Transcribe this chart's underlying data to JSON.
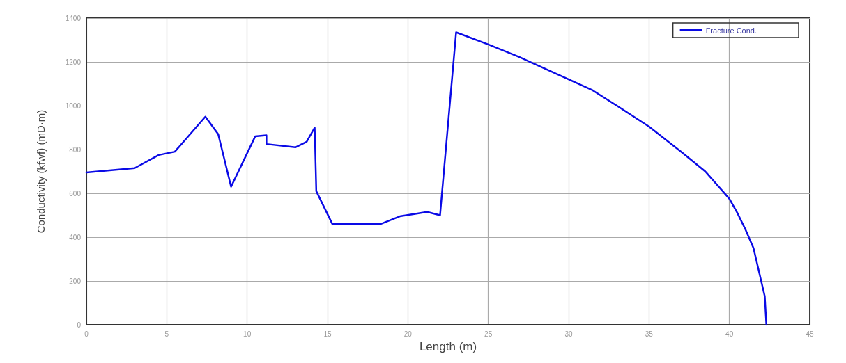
{
  "chart_data": {
    "type": "line",
    "xlabel": "Length (m)",
    "ylabel": "Conductivity (kfwf) (mD·m)",
    "xlim": [
      0,
      45
    ],
    "xticks": [
      0,
      5,
      10,
      15,
      20,
      25,
      30,
      35,
      40,
      45
    ],
    "ylim": [
      0,
      1400
    ],
    "yticks": [
      0,
      200,
      400,
      600,
      800,
      1000,
      1200,
      1400
    ],
    "grid": true,
    "legend": "top right",
    "marker": "none",
    "line_style": "solid",
    "series": [
      {
        "name": "Fracture Cond.",
        "color": "#0a0ae6",
        "x": [
          0,
          3,
          4.5,
          5.5,
          7.4,
          8.2,
          9,
          10.5,
          11.2,
          11.2,
          13,
          13.7,
          14.2,
          14.3,
          15.3,
          18.3,
          19.5,
          21.2,
          22,
          23,
          25,
          27,
          30,
          31.5,
          33,
          35,
          37,
          38.5,
          40,
          40.5,
          41,
          41.5,
          42.2,
          42.3
        ],
        "values": [
          695,
          715,
          775,
          790,
          950,
          870,
          630,
          860,
          865,
          825,
          810,
          835,
          900,
          610,
          460,
          460,
          495,
          515,
          500,
          1335,
          1280,
          1220,
          1120,
          1070,
          1000,
          905,
          790,
          700,
          575,
          510,
          435,
          350,
          130,
          0
        ]
      }
    ]
  }
}
